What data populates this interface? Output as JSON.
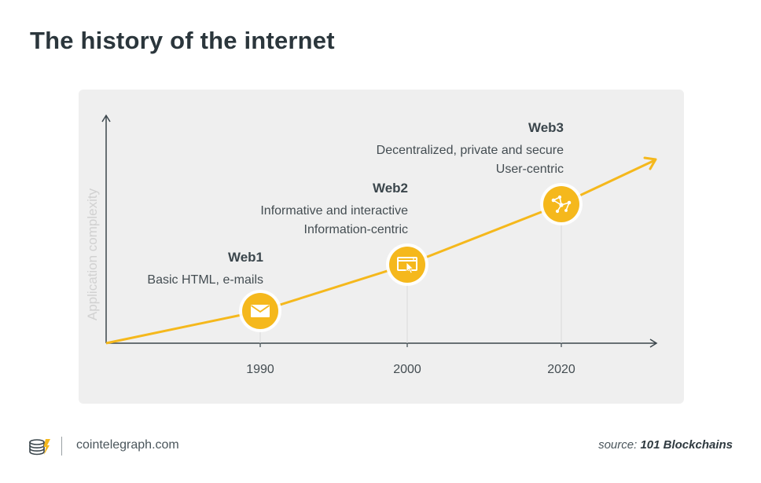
{
  "title": "The history of the internet",
  "y_axis_label": "Application complexity",
  "colors": {
    "accent": "#f5b81c",
    "panel": "#efefef",
    "axis": "#3b464c"
  },
  "eras": [
    {
      "name": "Web1",
      "lines": [
        "Basic HTML, e-mails"
      ],
      "year": "1990",
      "icon": "envelope-icon"
    },
    {
      "name": "Web2",
      "lines": [
        "Informative and interactive",
        "Information-centric"
      ],
      "year": "2000",
      "icon": "browser-click-icon"
    },
    {
      "name": "Web3",
      "lines": [
        "Decentralized, private and secure",
        "User-centric"
      ],
      "year": "2020",
      "icon": "network-nodes-icon"
    }
  ],
  "footer": {
    "site": "cointelegraph.com",
    "source_prefix": "source:",
    "source_name": "101 Blockchains"
  }
}
